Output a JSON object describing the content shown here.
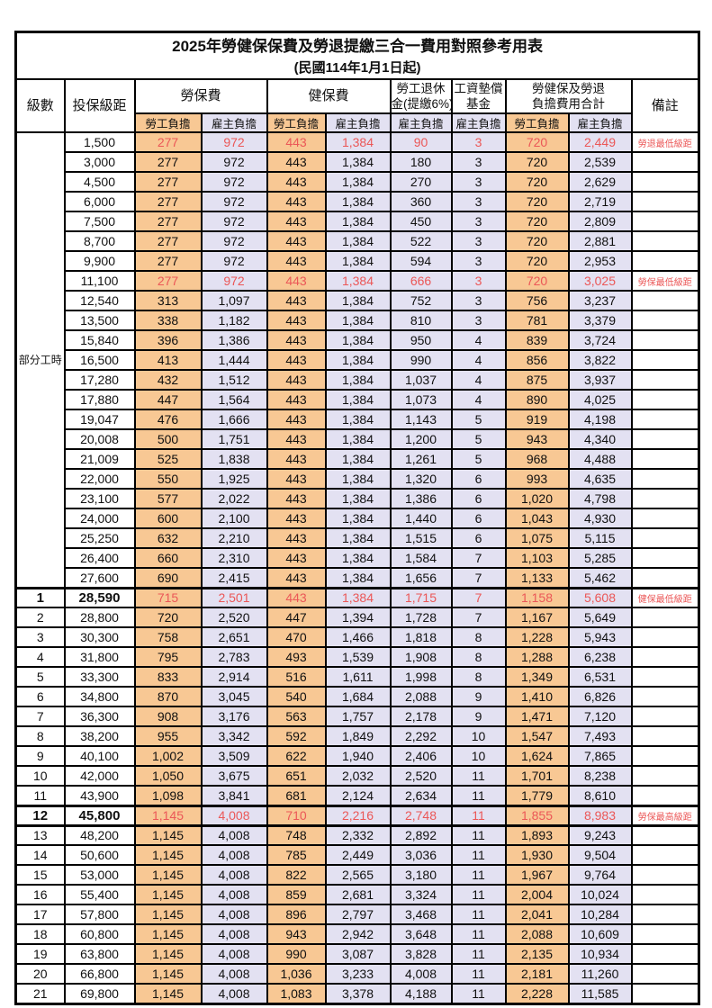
{
  "title": "2025年勞健保保費及勞退提繳三合一費用對照參考用表",
  "subtitle": "(民國114年1月1日起)",
  "header": {
    "level": "級數",
    "bracket": "投保級距",
    "labor_fee": "勞保費",
    "health_fee": "健保費",
    "pension_l1": "勞工退休",
    "pension_l2": "金(提繳6%)",
    "wage_fund_l1": "工資墊償",
    "wage_fund_l2": "基金",
    "total_l1": "勞健保及勞退",
    "total_l2": "負擔費用合計",
    "remark": "備註",
    "employee": "勞工負擔",
    "employer": "雇主負擔"
  },
  "part_time_label": "部分工時",
  "part_time_rowspan": 23,
  "colors": {
    "employee_bg": "#F8C894",
    "employer_bg": "#E3E1F2",
    "highlight_text": "#EB5757",
    "border": "#000000"
  },
  "rows": [
    {
      "level": null,
      "bracket": "1,500",
      "values": [
        "277",
        "972",
        "443",
        "1,384",
        "90",
        "3",
        "720",
        "2,449"
      ],
      "remark": "勞退最低級距",
      "highlight": true,
      "bold": false,
      "thick_top": false,
      "thick_bottom": false
    },
    {
      "level": null,
      "bracket": "3,000",
      "values": [
        "277",
        "972",
        "443",
        "1,384",
        "180",
        "3",
        "720",
        "2,539"
      ],
      "remark": "",
      "highlight": false,
      "bold": false,
      "thick_top": false,
      "thick_bottom": false
    },
    {
      "level": null,
      "bracket": "4,500",
      "values": [
        "277",
        "972",
        "443",
        "1,384",
        "270",
        "3",
        "720",
        "2,629"
      ],
      "remark": "",
      "highlight": false,
      "bold": false,
      "thick_top": false,
      "thick_bottom": false
    },
    {
      "level": null,
      "bracket": "6,000",
      "values": [
        "277",
        "972",
        "443",
        "1,384",
        "360",
        "3",
        "720",
        "2,719"
      ],
      "remark": "",
      "highlight": false,
      "bold": false,
      "thick_top": false,
      "thick_bottom": false
    },
    {
      "level": null,
      "bracket": "7,500",
      "values": [
        "277",
        "972",
        "443",
        "1,384",
        "450",
        "3",
        "720",
        "2,809"
      ],
      "remark": "",
      "highlight": false,
      "bold": false,
      "thick_top": false,
      "thick_bottom": false
    },
    {
      "level": null,
      "bracket": "8,700",
      "values": [
        "277",
        "972",
        "443",
        "1,384",
        "522",
        "3",
        "720",
        "2,881"
      ],
      "remark": "",
      "highlight": false,
      "bold": false,
      "thick_top": false,
      "thick_bottom": false
    },
    {
      "level": null,
      "bracket": "9,900",
      "values": [
        "277",
        "972",
        "443",
        "1,384",
        "594",
        "3",
        "720",
        "2,953"
      ],
      "remark": "",
      "highlight": false,
      "bold": false,
      "thick_top": false,
      "thick_bottom": false
    },
    {
      "level": null,
      "bracket": "11,100",
      "values": [
        "277",
        "972",
        "443",
        "1,384",
        "666",
        "3",
        "720",
        "3,025"
      ],
      "remark": "勞保最低級距",
      "highlight": true,
      "bold": false,
      "thick_top": false,
      "thick_bottom": false
    },
    {
      "level": null,
      "bracket": "12,540",
      "values": [
        "313",
        "1,097",
        "443",
        "1,384",
        "752",
        "3",
        "756",
        "3,237"
      ],
      "remark": "",
      "highlight": false,
      "bold": false,
      "thick_top": false,
      "thick_bottom": false
    },
    {
      "level": null,
      "bracket": "13,500",
      "values": [
        "338",
        "1,182",
        "443",
        "1,384",
        "810",
        "3",
        "781",
        "3,379"
      ],
      "remark": "",
      "highlight": false,
      "bold": false,
      "thick_top": false,
      "thick_bottom": false
    },
    {
      "level": null,
      "bracket": "15,840",
      "values": [
        "396",
        "1,386",
        "443",
        "1,384",
        "950",
        "4",
        "839",
        "3,724"
      ],
      "remark": "",
      "highlight": false,
      "bold": false,
      "thick_top": false,
      "thick_bottom": false
    },
    {
      "level": null,
      "bracket": "16,500",
      "values": [
        "413",
        "1,444",
        "443",
        "1,384",
        "990",
        "4",
        "856",
        "3,822"
      ],
      "remark": "",
      "highlight": false,
      "bold": false,
      "thick_top": false,
      "thick_bottom": false
    },
    {
      "level": null,
      "bracket": "17,280",
      "values": [
        "432",
        "1,512",
        "443",
        "1,384",
        "1,037",
        "4",
        "875",
        "3,937"
      ],
      "remark": "",
      "highlight": false,
      "bold": false,
      "thick_top": false,
      "thick_bottom": false
    },
    {
      "level": null,
      "bracket": "17,880",
      "values": [
        "447",
        "1,564",
        "443",
        "1,384",
        "1,073",
        "4",
        "890",
        "4,025"
      ],
      "remark": "",
      "highlight": false,
      "bold": false,
      "thick_top": false,
      "thick_bottom": false
    },
    {
      "level": null,
      "bracket": "19,047",
      "values": [
        "476",
        "1,666",
        "443",
        "1,384",
        "1,143",
        "5",
        "919",
        "4,198"
      ],
      "remark": "",
      "highlight": false,
      "bold": false,
      "thick_top": false,
      "thick_bottom": false
    },
    {
      "level": null,
      "bracket": "20,008",
      "values": [
        "500",
        "1,751",
        "443",
        "1,384",
        "1,200",
        "5",
        "943",
        "4,340"
      ],
      "remark": "",
      "highlight": false,
      "bold": false,
      "thick_top": false,
      "thick_bottom": false
    },
    {
      "level": null,
      "bracket": "21,009",
      "values": [
        "525",
        "1,838",
        "443",
        "1,384",
        "1,261",
        "5",
        "968",
        "4,488"
      ],
      "remark": "",
      "highlight": false,
      "bold": false,
      "thick_top": false,
      "thick_bottom": false
    },
    {
      "level": null,
      "bracket": "22,000",
      "values": [
        "550",
        "1,925",
        "443",
        "1,384",
        "1,320",
        "6",
        "993",
        "4,635"
      ],
      "remark": "",
      "highlight": false,
      "bold": false,
      "thick_top": false,
      "thick_bottom": false
    },
    {
      "level": null,
      "bracket": "23,100",
      "values": [
        "577",
        "2,022",
        "443",
        "1,384",
        "1,386",
        "6",
        "1,020",
        "4,798"
      ],
      "remark": "",
      "highlight": false,
      "bold": false,
      "thick_top": false,
      "thick_bottom": false
    },
    {
      "level": null,
      "bracket": "24,000",
      "values": [
        "600",
        "2,100",
        "443",
        "1,384",
        "1,440",
        "6",
        "1,043",
        "4,930"
      ],
      "remark": "",
      "highlight": false,
      "bold": false,
      "thick_top": false,
      "thick_bottom": false
    },
    {
      "level": null,
      "bracket": "25,250",
      "values": [
        "632",
        "2,210",
        "443",
        "1,384",
        "1,515",
        "6",
        "1,075",
        "5,115"
      ],
      "remark": "",
      "highlight": false,
      "bold": false,
      "thick_top": false,
      "thick_bottom": false
    },
    {
      "level": null,
      "bracket": "26,400",
      "values": [
        "660",
        "2,310",
        "443",
        "1,384",
        "1,584",
        "7",
        "1,103",
        "5,285"
      ],
      "remark": "",
      "highlight": false,
      "bold": false,
      "thick_top": false,
      "thick_bottom": false
    },
    {
      "level": null,
      "bracket": "27,600",
      "values": [
        "690",
        "2,415",
        "443",
        "1,384",
        "1,656",
        "7",
        "1,133",
        "5,462"
      ],
      "remark": "",
      "highlight": false,
      "bold": false,
      "thick_top": false,
      "thick_bottom": false
    },
    {
      "level": "1",
      "bracket": "28,590",
      "values": [
        "715",
        "2,501",
        "443",
        "1,384",
        "1,715",
        "7",
        "1,158",
        "5,608"
      ],
      "remark": "健保最低級距",
      "highlight": true,
      "bold": true,
      "thick_top": true,
      "thick_bottom": false
    },
    {
      "level": "2",
      "bracket": "28,800",
      "values": [
        "720",
        "2,520",
        "447",
        "1,394",
        "1,728",
        "7",
        "1,167",
        "5,649"
      ],
      "remark": "",
      "highlight": false,
      "bold": false,
      "thick_top": false,
      "thick_bottom": false
    },
    {
      "level": "3",
      "bracket": "30,300",
      "values": [
        "758",
        "2,651",
        "470",
        "1,466",
        "1,818",
        "8",
        "1,228",
        "5,943"
      ],
      "remark": "",
      "highlight": false,
      "bold": false,
      "thick_top": false,
      "thick_bottom": false
    },
    {
      "level": "4",
      "bracket": "31,800",
      "values": [
        "795",
        "2,783",
        "493",
        "1,539",
        "1,908",
        "8",
        "1,288",
        "6,238"
      ],
      "remark": "",
      "highlight": false,
      "bold": false,
      "thick_top": false,
      "thick_bottom": false
    },
    {
      "level": "5",
      "bracket": "33,300",
      "values": [
        "833",
        "2,914",
        "516",
        "1,611",
        "1,998",
        "8",
        "1,349",
        "6,531"
      ],
      "remark": "",
      "highlight": false,
      "bold": false,
      "thick_top": false,
      "thick_bottom": false
    },
    {
      "level": "6",
      "bracket": "34,800",
      "values": [
        "870",
        "3,045",
        "540",
        "1,684",
        "2,088",
        "9",
        "1,410",
        "6,826"
      ],
      "remark": "",
      "highlight": false,
      "bold": false,
      "thick_top": false,
      "thick_bottom": false
    },
    {
      "level": "7",
      "bracket": "36,300",
      "values": [
        "908",
        "3,176",
        "563",
        "1,757",
        "2,178",
        "9",
        "1,471",
        "7,120"
      ],
      "remark": "",
      "highlight": false,
      "bold": false,
      "thick_top": false,
      "thick_bottom": false
    },
    {
      "level": "8",
      "bracket": "38,200",
      "values": [
        "955",
        "3,342",
        "592",
        "1,849",
        "2,292",
        "10",
        "1,547",
        "7,493"
      ],
      "remark": "",
      "highlight": false,
      "bold": false,
      "thick_top": false,
      "thick_bottom": false
    },
    {
      "level": "9",
      "bracket": "40,100",
      "values": [
        "1,002",
        "3,509",
        "622",
        "1,940",
        "2,406",
        "10",
        "1,624",
        "7,865"
      ],
      "remark": "",
      "highlight": false,
      "bold": false,
      "thick_top": false,
      "thick_bottom": false
    },
    {
      "level": "10",
      "bracket": "42,000",
      "values": [
        "1,050",
        "3,675",
        "651",
        "2,032",
        "2,520",
        "11",
        "1,701",
        "8,238"
      ],
      "remark": "",
      "highlight": false,
      "bold": false,
      "thick_top": false,
      "thick_bottom": false
    },
    {
      "level": "11",
      "bracket": "43,900",
      "values": [
        "1,098",
        "3,841",
        "681",
        "2,124",
        "2,634",
        "11",
        "1,779",
        "8,610"
      ],
      "remark": "",
      "highlight": false,
      "bold": false,
      "thick_top": false,
      "thick_bottom": false
    },
    {
      "level": "12",
      "bracket": "45,800",
      "values": [
        "1,145",
        "4,008",
        "710",
        "2,216",
        "2,748",
        "11",
        "1,855",
        "8,983"
      ],
      "remark": "勞保最高級距",
      "highlight": true,
      "bold": true,
      "thick_top": true,
      "thick_bottom": true
    },
    {
      "level": "13",
      "bracket": "48,200",
      "values": [
        "1,145",
        "4,008",
        "748",
        "2,332",
        "2,892",
        "11",
        "1,893",
        "9,243"
      ],
      "remark": "",
      "highlight": false,
      "bold": false,
      "thick_top": false,
      "thick_bottom": false
    },
    {
      "level": "14",
      "bracket": "50,600",
      "values": [
        "1,145",
        "4,008",
        "785",
        "2,449",
        "3,036",
        "11",
        "1,930",
        "9,504"
      ],
      "remark": "",
      "highlight": false,
      "bold": false,
      "thick_top": false,
      "thick_bottom": false
    },
    {
      "level": "15",
      "bracket": "53,000",
      "values": [
        "1,145",
        "4,008",
        "822",
        "2,565",
        "3,180",
        "11",
        "1,967",
        "9,764"
      ],
      "remark": "",
      "highlight": false,
      "bold": false,
      "thick_top": false,
      "thick_bottom": false
    },
    {
      "level": "16",
      "bracket": "55,400",
      "values": [
        "1,145",
        "4,008",
        "859",
        "2,681",
        "3,324",
        "11",
        "2,004",
        "10,024"
      ],
      "remark": "",
      "highlight": false,
      "bold": false,
      "thick_top": false,
      "thick_bottom": false
    },
    {
      "level": "17",
      "bracket": "57,800",
      "values": [
        "1,145",
        "4,008",
        "896",
        "2,797",
        "3,468",
        "11",
        "2,041",
        "10,284"
      ],
      "remark": "",
      "highlight": false,
      "bold": false,
      "thick_top": false,
      "thick_bottom": false
    },
    {
      "level": "18",
      "bracket": "60,800",
      "values": [
        "1,145",
        "4,008",
        "943",
        "2,942",
        "3,648",
        "11",
        "2,088",
        "10,609"
      ],
      "remark": "",
      "highlight": false,
      "bold": false,
      "thick_top": false,
      "thick_bottom": false
    },
    {
      "level": "19",
      "bracket": "63,800",
      "values": [
        "1,145",
        "4,008",
        "990",
        "3,087",
        "3,828",
        "11",
        "2,135",
        "10,934"
      ],
      "remark": "",
      "highlight": false,
      "bold": false,
      "thick_top": false,
      "thick_bottom": false
    },
    {
      "level": "20",
      "bracket": "66,800",
      "values": [
        "1,145",
        "4,008",
        "1,036",
        "3,233",
        "4,008",
        "11",
        "2,181",
        "11,260"
      ],
      "remark": "",
      "highlight": false,
      "bold": false,
      "thick_top": false,
      "thick_bottom": false
    },
    {
      "level": "21",
      "bracket": "69,800",
      "values": [
        "1,145",
        "4,008",
        "1,083",
        "3,378",
        "4,188",
        "11",
        "2,228",
        "11,585"
      ],
      "remark": "",
      "highlight": false,
      "bold": false,
      "thick_top": false,
      "thick_bottom": false
    }
  ]
}
